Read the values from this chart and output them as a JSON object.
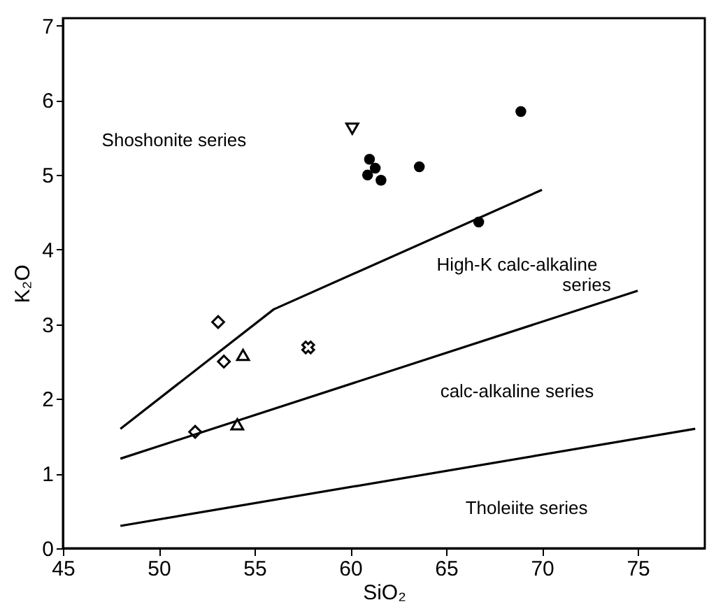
{
  "chart_data": {
    "type": "scatter",
    "xlabel": "SiO₂",
    "ylabel": "K₂O",
    "xlim": [
      45,
      78.5
    ],
    "ylim": [
      0,
      7.1
    ],
    "xticks": [
      45,
      50,
      55,
      60,
      65,
      70,
      75
    ],
    "yticks": [
      0,
      1,
      2,
      3,
      4,
      5,
      6,
      7
    ],
    "grid": false,
    "series": [
      {
        "marker": "circle",
        "color": "#000000",
        "x": [
          68.9,
          61.0,
          61.3,
          60.9,
          61.6,
          63.6,
          66.7
        ],
        "values": [
          5.85,
          5.21,
          5.09,
          5.0,
          4.93,
          5.11,
          4.37
        ]
      },
      {
        "marker": "triangle-down",
        "color": "#000000",
        "x": [
          60.1
        ],
        "values": [
          5.62
        ]
      },
      {
        "marker": "diamond",
        "color": "#000000",
        "x": [
          53.1,
          53.4,
          51.9
        ],
        "values": [
          3.03,
          2.5,
          1.56
        ]
      },
      {
        "marker": "triangle",
        "color": "#000000",
        "x": [
          54.4,
          54.1
        ],
        "values": [
          2.59,
          1.66
        ]
      },
      {
        "marker": "cross",
        "color": "#000000",
        "x": [
          57.8
        ],
        "values": [
          2.69
        ]
      },
      {
        "type": "line",
        "marker": "none",
        "line_style": "solid",
        "color": "#000000",
        "x": [
          48,
          56,
          70
        ],
        "values": [
          1.6,
          3.2,
          4.8
        ]
      },
      {
        "type": "line",
        "marker": "none",
        "line_style": "solid",
        "color": "#000000",
        "x": [
          48,
          75
        ],
        "values": [
          1.2,
          3.45
        ]
      },
      {
        "type": "line",
        "marker": "none",
        "line_style": "solid",
        "color": "#000000",
        "x": [
          48,
          78
        ],
        "values": [
          0.3,
          1.6
        ]
      }
    ],
    "annotations": [
      "Shoshonite series",
      "High-K calc-alkaline",
      "series",
      "calc-alkaline series",
      "Tholeiite series"
    ]
  }
}
